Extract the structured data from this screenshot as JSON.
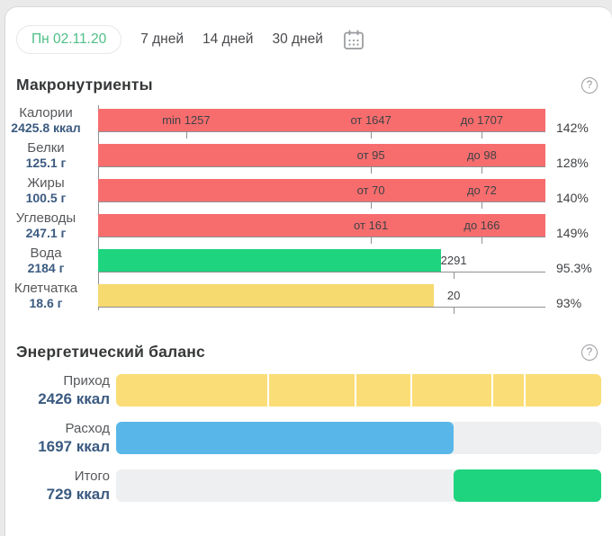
{
  "topbar": {
    "selected_tab": "Пн 02.11.20",
    "tabs": [
      "7 дней",
      "14 дней",
      "30 дней"
    ],
    "selected_color": "#4cbf85",
    "calendar_icon": "calendar-icon"
  },
  "macronutrients": {
    "title": "Макронутриенты",
    "help_label": "?",
    "rows": [
      {
        "name": "Калории",
        "value": "2425.8 ккал",
        "percent": "142%",
        "color": "#f76d6e",
        "fill": 100,
        "markers": [
          {
            "label": "min 1257",
            "pos": 19.7
          },
          {
            "label": "от 1647",
            "pos": 61
          },
          {
            "label": "до 1707",
            "pos": 85.8
          }
        ]
      },
      {
        "name": "Белки",
        "value": "125.1 г",
        "percent": "128%",
        "color": "#f76d6e",
        "fill": 100,
        "markers": [
          {
            "label": "от 95",
            "pos": 61
          },
          {
            "label": "до 98",
            "pos": 85.8
          }
        ]
      },
      {
        "name": "Жиры",
        "value": "100.5 г",
        "percent": "140%",
        "color": "#f76d6e",
        "fill": 100,
        "markers": [
          {
            "label": "от 70",
            "pos": 61
          },
          {
            "label": "до 72",
            "pos": 85.8
          }
        ]
      },
      {
        "name": "Углеводы",
        "value": "247.1 г",
        "percent": "149%",
        "color": "#f76d6e",
        "fill": 100,
        "markers": [
          {
            "label": "от 161",
            "pos": 61
          },
          {
            "label": "до 166",
            "pos": 85.8
          }
        ]
      },
      {
        "name": "Вода",
        "value": "2184 г",
        "percent": "95.3%",
        "color": "#1ed47e",
        "fill": 76.7,
        "markers": [
          {
            "label": "2291",
            "pos": 79.5
          }
        ]
      },
      {
        "name": "Клетчатка",
        "value": "18.6 г",
        "percent": "93%",
        "color": "#f6d96f",
        "fill": 75,
        "markers": [
          {
            "label": "20",
            "pos": 79.5
          }
        ]
      }
    ]
  },
  "energy": {
    "title": "Энергетический баланс",
    "help_label": "?",
    "rows": [
      {
        "name": "Приход",
        "value": "2426 ккал",
        "type": "segmented",
        "color": "#fadd76",
        "fill": 100,
        "separators": [
          31.2,
          49.1,
          60.7,
          77.4,
          84.1
        ]
      },
      {
        "name": "Расход",
        "value": "1697 ккал",
        "type": "fill-left",
        "color": "#58b7e8",
        "fill": 69.6
      },
      {
        "name": "Итого",
        "value": "729 ккал",
        "type": "fill-right",
        "color": "#1ed47e",
        "fill": 30.5
      }
    ]
  },
  "chart_data": [
    {
      "type": "bar",
      "title": "Макронутриенты",
      "categories": [
        "Калории",
        "Белки",
        "Жиры",
        "Углеводы",
        "Вода",
        "Клетчатка"
      ],
      "actual_values": [
        2425.8,
        125.1,
        100.5,
        247.1,
        2184,
        18.6
      ],
      "units": [
        "ккал",
        "г",
        "г",
        "г",
        "г",
        "г"
      ],
      "norm_annotations": [
        [
          "min 1257",
          "от 1647",
          "до 1707"
        ],
        [
          "от 95",
          "до 98"
        ],
        [
          "от 70",
          "до 72"
        ],
        [
          "от 161",
          "до 166"
        ],
        [
          "2291"
        ],
        [
          "20"
        ]
      ],
      "percent_of_norm": [
        "142%",
        "128%",
        "140%",
        "149%",
        "95.3%",
        "93%"
      ]
    },
    {
      "type": "bar",
      "title": "Энергетический баланс",
      "categories": [
        "Приход",
        "Расход",
        "Итого"
      ],
      "values": [
        2426,
        1697,
        729
      ],
      "units": [
        "ккал",
        "ккал",
        "ккал"
      ]
    }
  ]
}
